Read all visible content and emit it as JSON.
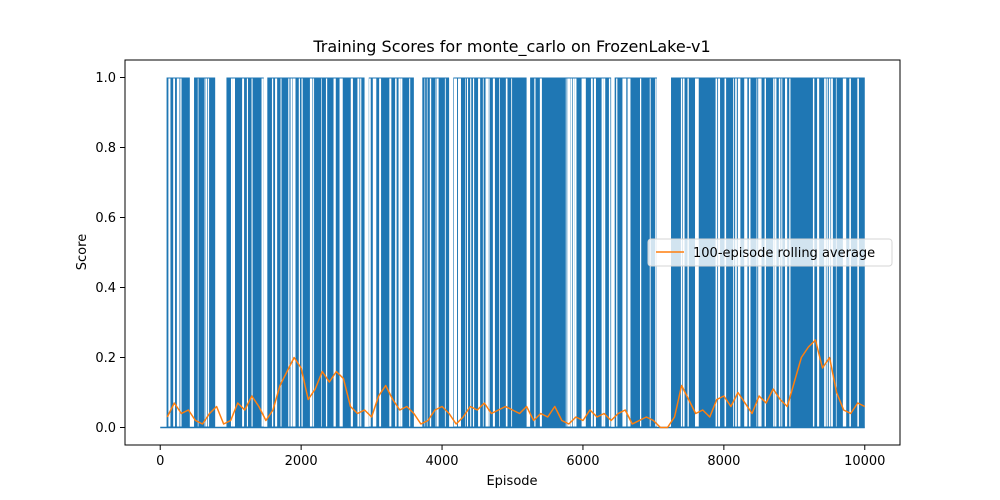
{
  "chart_data": {
    "type": "line",
    "title": "Training Scores for monte_carlo on FrozenLake-v1",
    "xlabel": "Episode",
    "ylabel": "Score",
    "xlim": [
      -500,
      10500
    ],
    "ylim": [
      -0.05,
      1.05
    ],
    "xticks": [
      0,
      2000,
      4000,
      6000,
      8000,
      10000
    ],
    "yticks": [
      0.0,
      0.2,
      0.4,
      0.6,
      0.8,
      1.0
    ],
    "xtick_labels": [
      "0",
      "2000",
      "4000",
      "6000",
      "8000",
      "10000"
    ],
    "ytick_labels": [
      "0.0",
      "0.2",
      "0.4",
      "0.6",
      "0.8",
      "1.0"
    ],
    "grid": false,
    "legend_position": "center-right",
    "series": [
      {
        "name": "",
        "color": "#1f77b4",
        "kind": "episode-scores",
        "dense_success_ranges": [
          [
            90,
            420
          ],
          [
            480,
            780
          ],
          [
            940,
            1470
          ],
          [
            1520,
            2900
          ],
          [
            2960,
            3600
          ],
          [
            3720,
            4100
          ],
          [
            4160,
            5200
          ],
          [
            5250,
            6400
          ],
          [
            6450,
            7050
          ],
          [
            7250,
            10000
          ]
        ],
        "no_success_ranges": [
          [
            0,
            25
          ],
          [
            790,
            920
          ],
          [
            3610,
            3700
          ],
          [
            7060,
            7240
          ]
        ]
      },
      {
        "name": "100-episode rolling average",
        "color": "#ff7f0e",
        "kind": "rolling-average",
        "x": [
          100,
          200,
          300,
          400,
          500,
          600,
          700,
          800,
          900,
          1000,
          1100,
          1200,
          1300,
          1400,
          1500,
          1600,
          1700,
          1800,
          1900,
          2000,
          2100,
          2200,
          2300,
          2400,
          2500,
          2600,
          2700,
          2800,
          2900,
          3000,
          3100,
          3200,
          3300,
          3400,
          3500,
          3600,
          3700,
          3800,
          3900,
          4000,
          4100,
          4200,
          4300,
          4400,
          4500,
          4600,
          4700,
          4800,
          4900,
          5000,
          5100,
          5200,
          5300,
          5400,
          5500,
          5600,
          5700,
          5800,
          5900,
          6000,
          6100,
          6200,
          6300,
          6400,
          6500,
          6600,
          6700,
          6800,
          6900,
          7000,
          7100,
          7200,
          7300,
          7400,
          7500,
          7600,
          7700,
          7800,
          7900,
          8000,
          8100,
          8200,
          8300,
          8400,
          8500,
          8600,
          8700,
          8800,
          8900,
          9000,
          9100,
          9200,
          9300,
          9400,
          9500,
          9600,
          9700,
          9800,
          9900,
          10000
        ],
        "y": [
          0.03,
          0.07,
          0.04,
          0.05,
          0.02,
          0.01,
          0.04,
          0.06,
          0.01,
          0.02,
          0.07,
          0.05,
          0.09,
          0.06,
          0.02,
          0.05,
          0.12,
          0.16,
          0.2,
          0.17,
          0.08,
          0.11,
          0.16,
          0.13,
          0.16,
          0.14,
          0.06,
          0.04,
          0.05,
          0.03,
          0.09,
          0.12,
          0.08,
          0.05,
          0.06,
          0.04,
          0.01,
          0.02,
          0.05,
          0.06,
          0.04,
          0.01,
          0.03,
          0.06,
          0.05,
          0.07,
          0.04,
          0.05,
          0.06,
          0.05,
          0.04,
          0.06,
          0.02,
          0.04,
          0.03,
          0.06,
          0.02,
          0.01,
          0.03,
          0.02,
          0.05,
          0.03,
          0.04,
          0.02,
          0.04,
          0.05,
          0.01,
          0.02,
          0.03,
          0.02,
          0.0,
          0.0,
          0.03,
          0.12,
          0.08,
          0.04,
          0.05,
          0.03,
          0.08,
          0.09,
          0.06,
          0.1,
          0.07,
          0.04,
          0.09,
          0.07,
          0.11,
          0.08,
          0.06,
          0.13,
          0.2,
          0.23,
          0.25,
          0.17,
          0.2,
          0.1,
          0.05,
          0.04,
          0.07,
          0.06
        ]
      }
    ]
  }
}
